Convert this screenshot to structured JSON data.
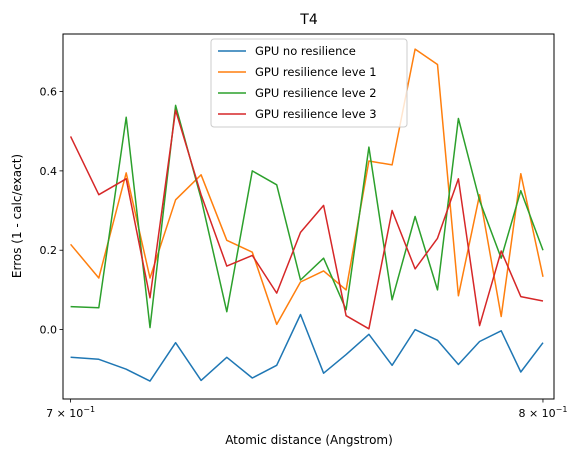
{
  "chart_data": {
    "type": "line",
    "title": "T4",
    "xlabel": "Atomic distance (Angstrom)",
    "ylabel": "Erros (1 - calc/exact)",
    "xscale": "log",
    "xlim": [
      0.6985,
      0.8025
    ],
    "ylim": [
      -0.175,
      0.745
    ],
    "xticks": [
      {
        "value": 0.7,
        "base": "7",
        "exp": "−1"
      },
      {
        "value": 0.8,
        "base": "8",
        "exp": "−1"
      }
    ],
    "yticks": [
      {
        "value": 0.0,
        "label": "0.0"
      },
      {
        "value": 0.2,
        "label": "0.2"
      },
      {
        "value": 0.4,
        "label": "0.4"
      },
      {
        "value": 0.6,
        "label": "0.6"
      }
    ],
    "grid": false,
    "legend_position": "top-center",
    "x": [
      0.7,
      0.7056,
      0.7111,
      0.7159,
      0.7211,
      0.7263,
      0.7316,
      0.7369,
      0.742,
      0.747,
      0.7519,
      0.7567,
      0.7616,
      0.7666,
      0.7716,
      0.7765,
      0.7811,
      0.7858,
      0.7906,
      0.795,
      0.8
    ],
    "series": [
      {
        "name": "GPU no resilience",
        "color": "#1f77b4",
        "values": [
          -0.07,
          -0.075,
          -0.1,
          -0.13,
          -0.033,
          -0.128,
          -0.07,
          -0.122,
          -0.09,
          0.038,
          -0.11,
          -0.063,
          -0.012,
          -0.09,
          0.0,
          -0.027,
          -0.088,
          -0.03,
          -0.003,
          -0.107,
          -0.033
        ]
      },
      {
        "name": "GPU resilience leve 1",
        "color": "#ff7f0e",
        "values": [
          0.215,
          0.13,
          0.395,
          0.13,
          0.327,
          0.39,
          0.225,
          0.195,
          0.013,
          0.12,
          0.148,
          0.1,
          0.425,
          0.415,
          0.707,
          0.668,
          0.085,
          0.34,
          0.033,
          0.393,
          0.133
        ]
      },
      {
        "name": "GPU resilience leve 2",
        "color": "#2ca02c",
        "values": [
          0.058,
          0.055,
          0.535,
          0.005,
          0.565,
          0.33,
          0.045,
          0.4,
          0.365,
          0.125,
          0.18,
          0.05,
          0.46,
          0.075,
          0.285,
          0.1,
          0.532,
          0.325,
          0.18,
          0.35,
          0.2
        ]
      },
      {
        "name": "GPU resilience leve 3",
        "color": "#d62728",
        "values": [
          0.487,
          0.34,
          0.38,
          0.08,
          0.553,
          0.34,
          0.16,
          0.187,
          0.092,
          0.245,
          0.313,
          0.035,
          0.002,
          0.3,
          0.153,
          0.23,
          0.38,
          0.01,
          0.198,
          0.083,
          0.072
        ]
      }
    ]
  }
}
